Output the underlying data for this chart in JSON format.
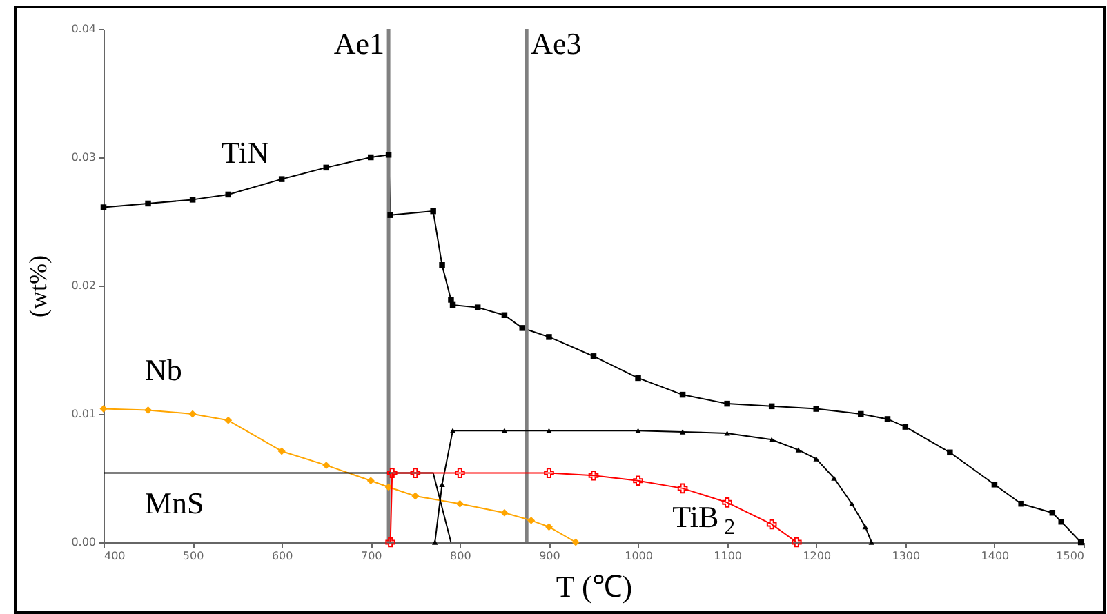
{
  "chart_data": {
    "type": "line",
    "xlabel": "T (℃)",
    "ylabel": "(wt%)",
    "xlim": [
      400,
      1500
    ],
    "xticks": [
      400,
      500,
      600,
      700,
      800,
      900,
      1000,
      1100,
      1200,
      1300,
      1400,
      1500
    ],
    "ylim": [
      0,
      0.04
    ],
    "yticks": [
      "0.00",
      0.01,
      0.02,
      0.03,
      0.04
    ],
    "grid": false,
    "legend": false,
    "ref_lines": [
      {
        "axis": "x",
        "value": 720,
        "label": "Ae1",
        "color": "#808080"
      },
      {
        "axis": "x",
        "value": 875,
        "label": "Ae3",
        "color": "#808080"
      }
    ],
    "series": [
      {
        "name": "TiN",
        "color": "#000000",
        "marker": "square",
        "x": [
          400,
          450,
          500,
          540,
          600,
          650,
          700,
          720,
          722,
          770,
          780,
          790,
          792,
          820,
          850,
          870,
          900,
          950,
          1000,
          1050,
          1100,
          1150,
          1200,
          1250,
          1280,
          1300,
          1350,
          1400,
          1430,
          1465,
          1475,
          1497
        ],
        "values": [
          0.0261,
          0.0264,
          0.0267,
          0.0271,
          0.0283,
          0.0292,
          0.03,
          0.0302,
          0.0255,
          0.0258,
          0.0216,
          0.0189,
          0.0185,
          0.0183,
          0.0177,
          0.0167,
          0.016,
          0.0145,
          0.0128,
          0.0115,
          0.0108,
          0.0106,
          0.0104,
          0.01,
          0.0096,
          0.009,
          0.007,
          0.0045,
          0.003,
          0.0023,
          0.0016,
          0
        ]
      },
      {
        "name": "Nb",
        "color": "#ffa500",
        "marker": "diamond",
        "x": [
          400,
          450,
          500,
          540,
          600,
          650,
          700,
          720,
          750,
          800,
          850,
          880,
          900,
          930
        ],
        "values": [
          0.0104,
          0.0103,
          0.01,
          0.0095,
          0.0071,
          0.006,
          0.0048,
          0.0043,
          0.0036,
          0.003,
          0.0023,
          0.0017,
          0.0012,
          0
        ]
      },
      {
        "name": "MnS",
        "color": "#000000",
        "marker": "none",
        "x": [
          400,
          720,
          770,
          790
        ],
        "values": [
          0.0054,
          0.0054,
          0.0054,
          0
        ]
      },
      {
        "color": "#000000",
        "marker": "triangle",
        "x": [
          772,
          780,
          792,
          850,
          900,
          1000,
          1050,
          1100,
          1150,
          1180,
          1200,
          1220,
          1240,
          1255,
          1262
        ],
        "values": [
          0,
          0.0045,
          0.0087,
          0.0087,
          0.0087,
          0.0087,
          0.0086,
          0.0085,
          0.008,
          0.0072,
          0.0065,
          0.005,
          0.003,
          0.0012,
          0
        ]
      },
      {
        "name": "TiB$_{2}$",
        "color": "#ff0000",
        "marker": "cross",
        "x": [
          722,
          724,
          750,
          800,
          900,
          950,
          1000,
          1050,
          1100,
          1150,
          1178
        ],
        "values": [
          0,
          0.0054,
          0.0054,
          0.0054,
          0.0054,
          0.0052,
          0.0048,
          0.0042,
          0.0031,
          0.0014,
          0
        ]
      }
    ]
  }
}
